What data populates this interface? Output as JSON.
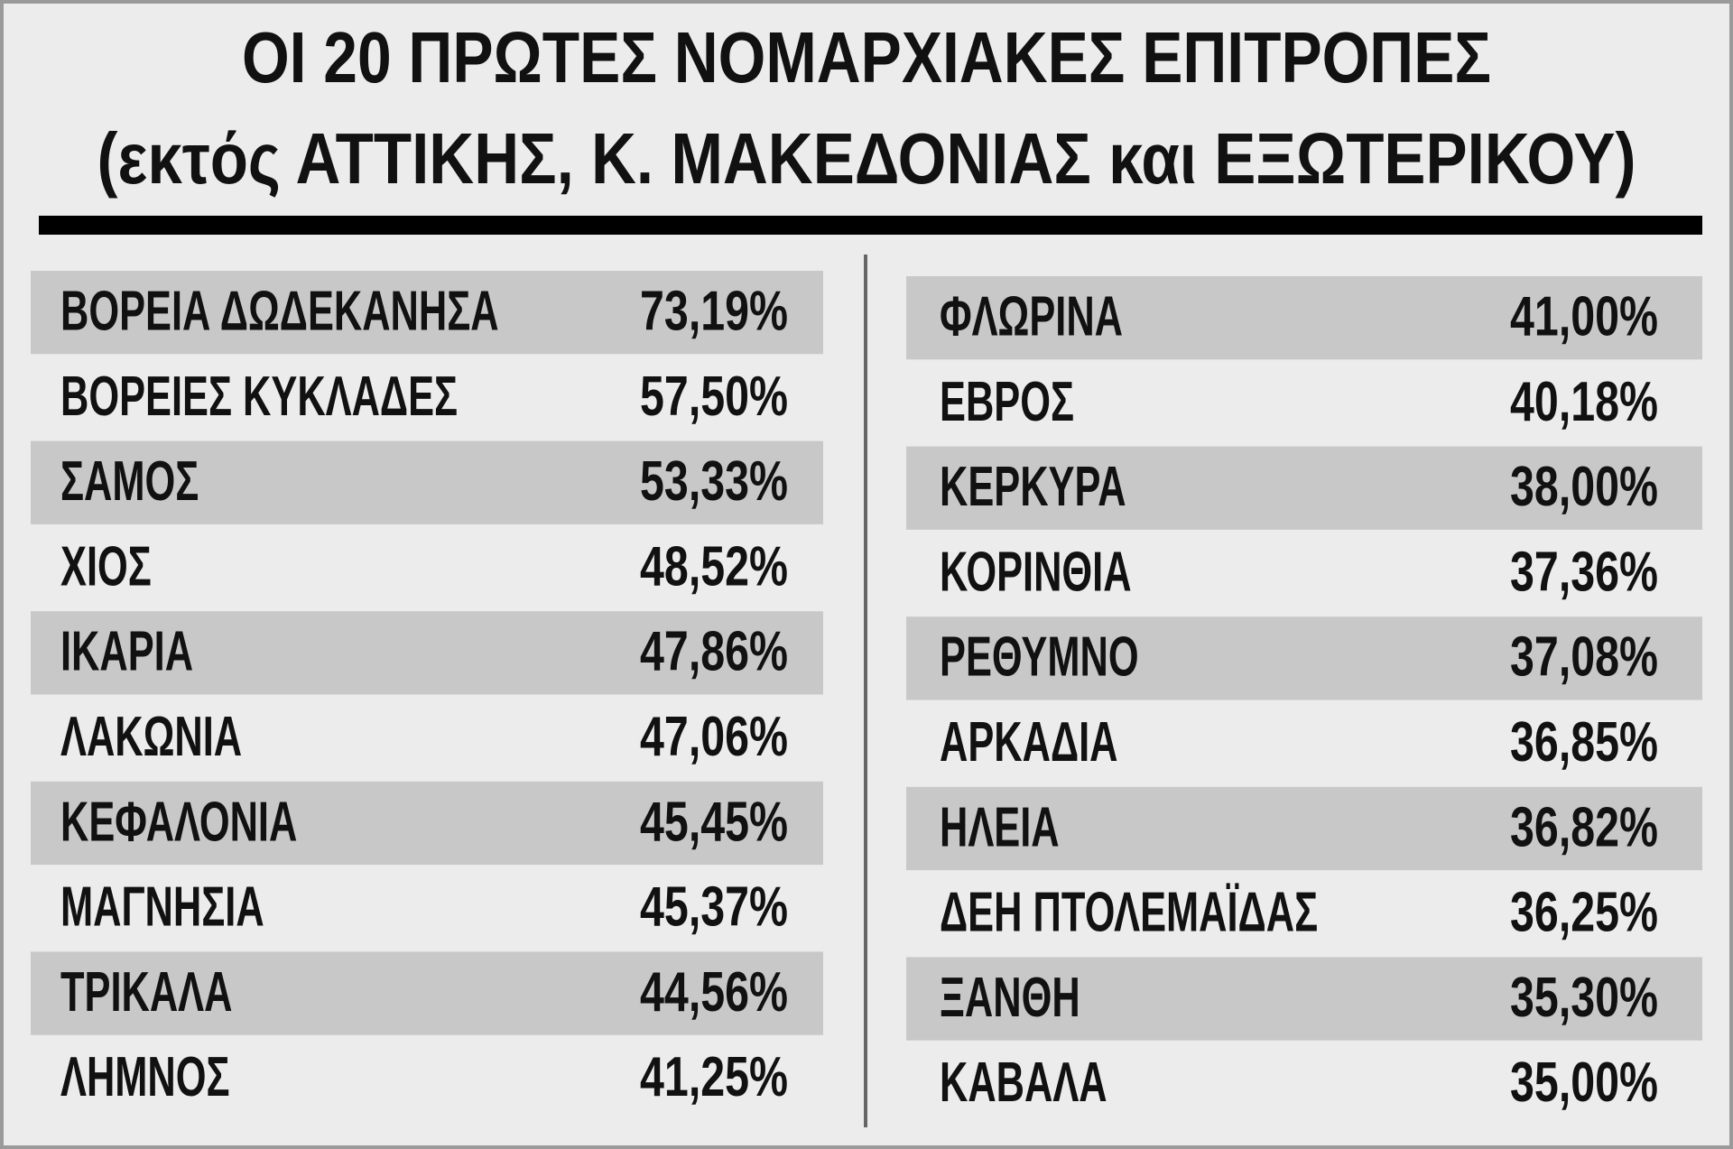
{
  "title": {
    "line1": "ΟΙ 20 ΠΡΩΤΕΣ ΝΟΜΑΡΧΙΑΚΕΣ ΕΠΙΤΡΟΠΕΣ",
    "line2": "(εκτός ΑΤΤΙΚΗΣ, Κ. ΜΑΚΕΔΟΝΙΑΣ και ΕΞΩΤΕΡΙΚΟΥ)"
  },
  "table": {
    "left": [
      [
        "ΒΟΡΕΙΑ ΔΩΔΕΚΑΝΗΣΑ",
        "73,19%"
      ],
      [
        "ΒΟΡΕΙΕΣ ΚΥΚΛΑΔΕΣ",
        "57,50%"
      ],
      [
        "ΣΑΜΟΣ",
        "53,33%"
      ],
      [
        "ΧΙΟΣ",
        "48,52%"
      ],
      [
        "ΙΚΑΡΙΑ",
        "47,86%"
      ],
      [
        "ΛΑΚΩΝΙΑ",
        "47,06%"
      ],
      [
        "ΚΕΦΑΛΟΝΙΑ",
        "45,45%"
      ],
      [
        "ΜΑΓΝΗΣΙΑ",
        "45,37%"
      ],
      [
        "ΤΡΙΚΑΛΑ",
        "44,56%"
      ],
      [
        "ΛΗΜΝΟΣ",
        "41,25%"
      ]
    ],
    "right": [
      [
        "ΦΛΩΡΙΝΑ",
        "41,00%"
      ],
      [
        "ΕΒΡΟΣ",
        "40,18%"
      ],
      [
        "ΚΕΡΚΥΡΑ",
        "38,00%"
      ],
      [
        "ΚΟΡΙΝΘΙΑ",
        "37,36%"
      ],
      [
        "ΡΕΘΥΜΝΟ",
        "37,08%"
      ],
      [
        "ΑΡΚΑΔΙΑ",
        "36,85%"
      ],
      [
        "ΗΛΕΙΑ",
        "36,82%"
      ],
      [
        "ΔΕΗ ΠΤΟΛΕΜΑΪΔΑΣ",
        "36,25%"
      ],
      [
        "ΞΑΝΘΗ",
        "35,30%"
      ],
      [
        "ΚΑΒΑΛΑ",
        "35,00%"
      ]
    ]
  }
}
